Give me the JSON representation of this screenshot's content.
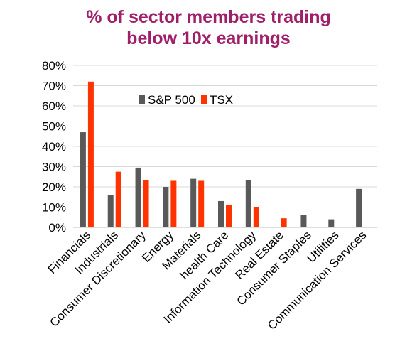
{
  "chart_data": {
    "type": "bar",
    "title_lines": [
      "% of sector members trading",
      "below 10x earnings"
    ],
    "xlabel": "",
    "ylabel": "",
    "ylim": [
      0,
      0.8
    ],
    "yticks": [
      "0%",
      "10%",
      "20%",
      "30%",
      "40%",
      "50%",
      "60%",
      "70%",
      "80%"
    ],
    "grid": true,
    "legend_position": "top-left inside plot",
    "categories": [
      "Financials",
      "Industrials",
      "Consumer Discretionary",
      "Energy",
      "Materials",
      "health Care",
      "Information Technology",
      "Real Estate",
      "Consumer Staples",
      "Utilities",
      "Communication Services"
    ],
    "series": [
      {
        "name": "S&P 500",
        "color": "#595959",
        "values": [
          0.47,
          0.16,
          0.295,
          0.2,
          0.24,
          0.13,
          0.235,
          0.0,
          0.06,
          0.04,
          0.19
        ]
      },
      {
        "name": "TSX",
        "color": "#ff3300",
        "values": [
          0.72,
          0.275,
          0.235,
          0.23,
          0.23,
          0.11,
          0.1,
          0.045,
          0.0,
          0.0,
          0.0
        ]
      }
    ]
  }
}
